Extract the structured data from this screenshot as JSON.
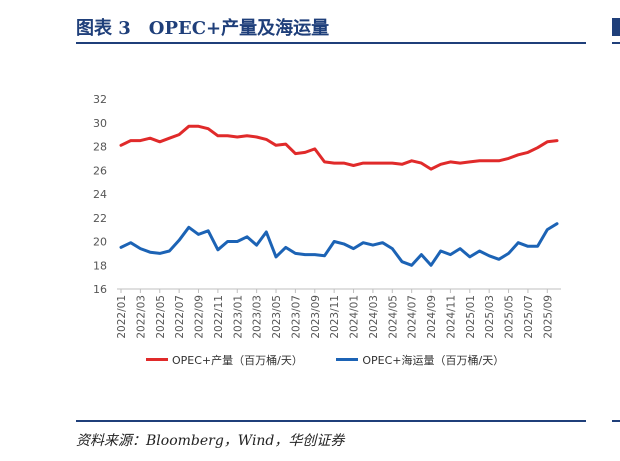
{
  "header": {
    "title": "图表 3　OPEC+产量及海运量"
  },
  "footer": {
    "source": "资料来源：Bloomberg，Wind，华创证券"
  },
  "colors": {
    "accent": "#1f3f7a",
    "series_red": "#e02a2a",
    "series_blue": "#1c63b5"
  },
  "chart_data": {
    "type": "line",
    "x": [
      "2022/01",
      "2022/02",
      "2022/03",
      "2022/04",
      "2022/05",
      "2022/06",
      "2022/07",
      "2022/08",
      "2022/09",
      "2022/10",
      "2022/11",
      "2022/12",
      "2023/01",
      "2023/02",
      "2023/03",
      "2023/04",
      "2023/05",
      "2023/06",
      "2023/07",
      "2023/08",
      "2023/09",
      "2023/10",
      "2023/11",
      "2023/12",
      "2024/01",
      "2024/02",
      "2024/03",
      "2024/04",
      "2024/05",
      "2024/06",
      "2024/07",
      "2024/08",
      "2024/09",
      "2024/10",
      "2024/11",
      "2024/12",
      "2025/01",
      "2025/02",
      "2025/03",
      "2025/04",
      "2025/05",
      "2025/06",
      "2025/07",
      "2025/08",
      "2025/09",
      "2025/10"
    ],
    "xticks": [
      "2022/01",
      "2022/03",
      "2022/05",
      "2022/07",
      "2022/09",
      "2022/11",
      "2023/01",
      "2023/03",
      "2023/05",
      "2023/07",
      "2023/09",
      "2023/11",
      "2024/01",
      "2024/03",
      "2024/05",
      "2024/07",
      "2024/09",
      "2024/11",
      "2025/01",
      "2025/03",
      "2025/05",
      "2025/07",
      "2025/09"
    ],
    "ylim": [
      16,
      32
    ],
    "yticks": [
      16,
      18,
      20,
      22,
      24,
      26,
      28,
      30,
      32
    ],
    "grid": false,
    "legend_position": "bottom",
    "series": [
      {
        "name": "OPEC+产量（百万桶/天）",
        "color": "#e02a2a",
        "values": [
          28.1,
          28.5,
          28.5,
          28.7,
          28.4,
          28.7,
          29.0,
          29.7,
          29.7,
          29.5,
          28.9,
          28.9,
          28.8,
          28.9,
          28.8,
          28.6,
          28.1,
          28.2,
          27.4,
          27.5,
          27.8,
          26.7,
          26.6,
          26.6,
          26.4,
          26.6,
          26.6,
          26.6,
          26.6,
          26.5,
          26.8,
          26.6,
          26.1,
          26.5,
          26.7,
          26.6,
          26.7,
          26.8,
          26.8,
          26.8,
          27.0,
          27.3,
          27.5,
          27.9,
          28.4,
          28.5
        ]
      },
      {
        "name": "OPEC+海运量（百万桶/天）",
        "color": "#1c63b5",
        "values": [
          19.5,
          19.9,
          19.4,
          19.1,
          19.0,
          19.2,
          20.1,
          21.2,
          20.6,
          20.9,
          19.3,
          20.0,
          20.0,
          20.4,
          19.7,
          20.8,
          18.7,
          19.5,
          19.0,
          18.9,
          18.9,
          18.8,
          20.0,
          19.8,
          19.4,
          19.9,
          19.7,
          19.9,
          19.4,
          18.3,
          18.0,
          18.9,
          18.0,
          19.2,
          18.9,
          19.4,
          18.7,
          19.2,
          18.8,
          18.5,
          19.0,
          19.9,
          19.6,
          19.6,
          21.0,
          21.5
        ]
      }
    ]
  }
}
